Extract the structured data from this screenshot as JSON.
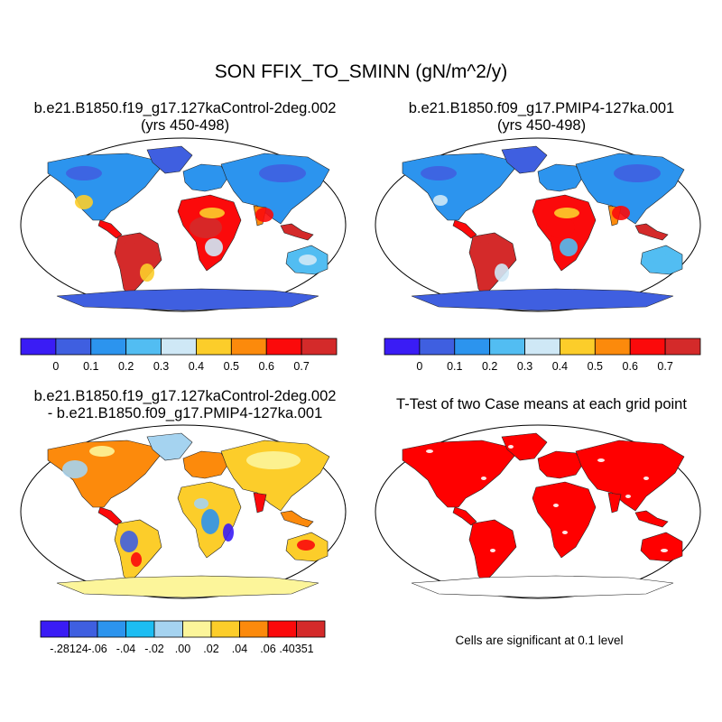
{
  "title": "SON FFIX_TO_SMINN (gN/m^2/y)",
  "panels": [
    {
      "id": "p1",
      "title_line1": "b.e21.B1850.f19_g17.127kaControl-2deg.002",
      "title_line2": "(yrs 450-498)"
    },
    {
      "id": "p2",
      "title_line1": "b.e21.B1850.f09_g17.PMIP4-127ka.001",
      "title_line2": "(yrs 450-498)"
    },
    {
      "id": "p3",
      "title_line1": "b.e21.B1850.f19_g17.127kaControl-2deg.002",
      "title_line2": "- b.e21.B1850.f09_g17.PMIP4-127ka.001"
    },
    {
      "id": "p4",
      "title_line1": "T-Test of two Case means at each grid point",
      "title_line2": ""
    }
  ],
  "colorbar_abs": {
    "colors": [
      "#3a1cf5",
      "#3f5fe0",
      "#2c94ee",
      "#52bdf2",
      "#cfe8f6",
      "#fccd2a",
      "#fc8a0c",
      "#fb0a0b",
      "#d42a2a"
    ],
    "labels": [
      "0",
      "0.1",
      "0.2",
      "0.3",
      "0.4",
      "0.5",
      "0.6",
      "0.7"
    ]
  },
  "colorbar_diff": {
    "colors": [
      "#3a1cf5",
      "#3f5fe0",
      "#2c94ee",
      "#1cbdf2",
      "#a5d3f0",
      "#fcf59a",
      "#fccd2a",
      "#fc8a0c",
      "#fb0a0b",
      "#d42a2a"
    ],
    "labels": [
      "-.28124",
      "-.06",
      "-.04",
      "-.02",
      ".00",
      ".02",
      ".04",
      ".06",
      ".40351"
    ]
  },
  "significance_note": "Cells are significant at 0.1 level",
  "significance_color": "#ff0000"
}
